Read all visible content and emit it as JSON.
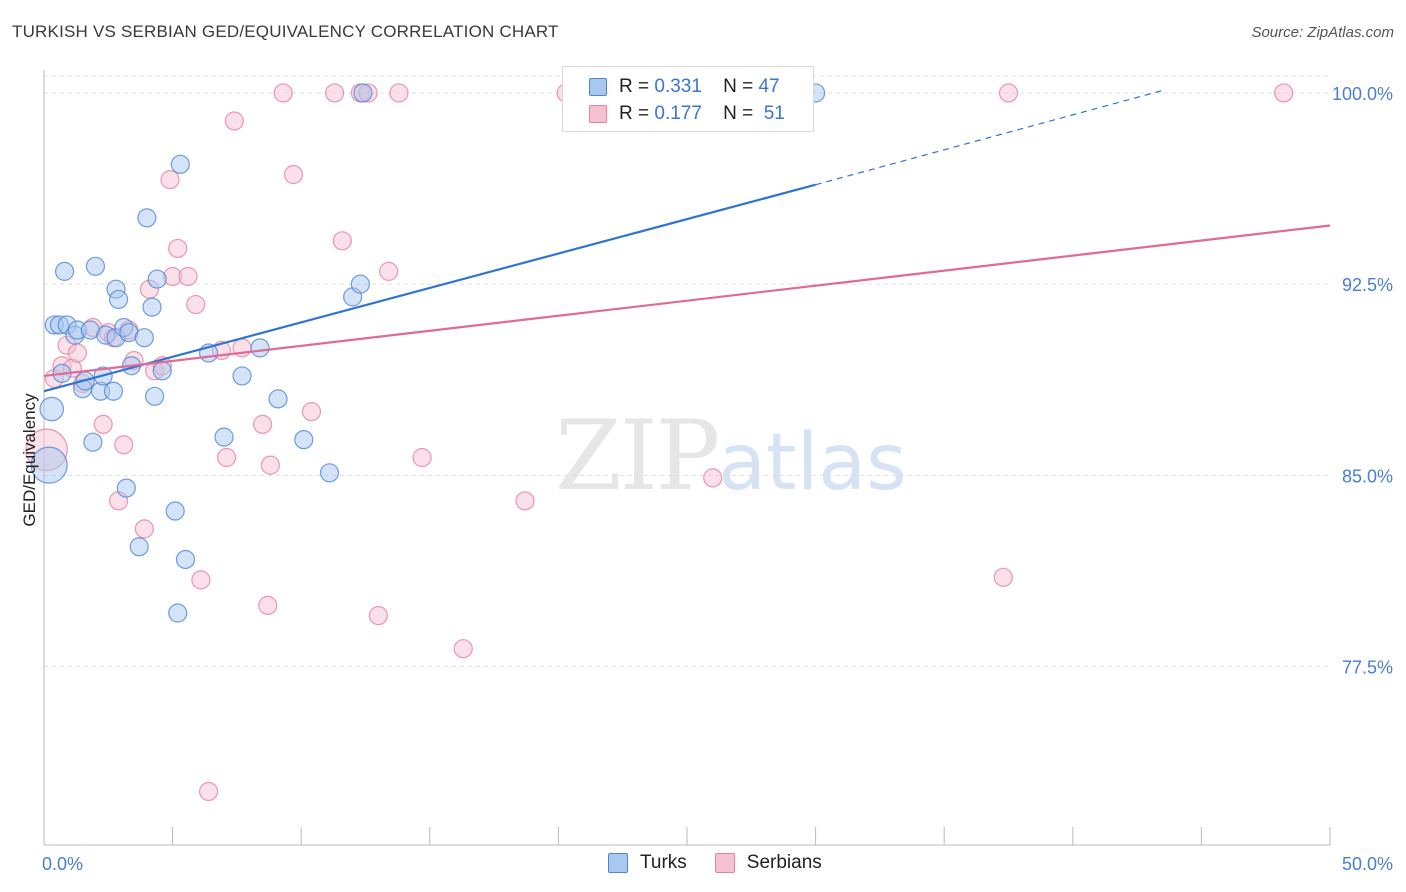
{
  "title": "TURKISH VS SERBIAN GED/EQUIVALENCY CORRELATION CHART",
  "source": "Source: ZipAtlas.com",
  "watermark": {
    "zip": "ZIP",
    "atlas": "atlas"
  },
  "colors": {
    "turks_fill": "#a9c8f0",
    "turks_stroke": "#4e86d6",
    "turks_line": "#2f74d0",
    "serbians_fill": "#f6c1d1",
    "serbians_stroke": "#e77fa0",
    "serbians_line": "#e06a95",
    "tick_label": "#4a7ecf",
    "grid": "#dddddd"
  },
  "legend": {
    "rows": [
      {
        "r_label": "R =",
        "r_value": "0.331",
        "n_label": "N =",
        "n_value": "47"
      },
      {
        "r_label": "R =",
        "r_value": "0.177",
        "n_label": "N =",
        "n_value": "51"
      }
    ]
  },
  "bottom_legend": {
    "turks": "Turks",
    "serbians": "Serbians"
  },
  "chart_data": {
    "type": "scatter",
    "title": "TURKISH VS SERBIAN GED/EQUIVALENCY CORRELATION CHART",
    "xlabel": "",
    "ylabel": "GED/Equivalency",
    "xlim": [
      0,
      50
    ],
    "ylim": [
      70.5,
      100.9
    ],
    "x_tick_labels": [
      "0.0%",
      "50.0%"
    ],
    "y_ticks": [
      77.5,
      85.0,
      92.5,
      100.0
    ],
    "y_tick_labels": [
      "77.5%",
      "85.0%",
      "92.5%",
      "100.0%"
    ],
    "series": [
      {
        "name": "Turks",
        "r": 0.331,
        "n": 47,
        "trend": {
          "x0": 0,
          "y0": 88.3,
          "x1": 30.0,
          "y1": 96.4,
          "dash_to_x": 43.5,
          "dash_to_y": 100.1
        },
        "points": [
          [
            0.2,
            85.4,
            2.0
          ],
          [
            0.3,
            87.6,
            1.3
          ],
          [
            0.4,
            90.9,
            1.0
          ],
          [
            0.6,
            90.9,
            1.0
          ],
          [
            0.7,
            89.0,
            1.0
          ],
          [
            0.8,
            93.0,
            1.0
          ],
          [
            0.9,
            90.9,
            1.0
          ],
          [
            1.2,
            90.5,
            1.0
          ],
          [
            1.3,
            90.7,
            1.0
          ],
          [
            1.5,
            88.4,
            1.0
          ],
          [
            1.6,
            88.7,
            1.0
          ],
          [
            1.8,
            90.7,
            1.0
          ],
          [
            1.9,
            86.3,
            1.0
          ],
          [
            2.0,
            93.2,
            1.0
          ],
          [
            2.2,
            88.3,
            1.0
          ],
          [
            2.4,
            90.5,
            1.0
          ],
          [
            2.3,
            88.9,
            1.0
          ],
          [
            2.7,
            88.3,
            1.0
          ],
          [
            2.8,
            90.4,
            1.0
          ],
          [
            2.8,
            92.3,
            1.0
          ],
          [
            2.9,
            91.9,
            1.0
          ],
          [
            3.1,
            90.8,
            1.0
          ],
          [
            3.2,
            84.5,
            1.0
          ],
          [
            3.3,
            90.6,
            1.0
          ],
          [
            3.4,
            89.3,
            1.0
          ],
          [
            3.7,
            82.2,
            1.0
          ],
          [
            3.9,
            90.4,
            1.0
          ],
          [
            4.0,
            95.1,
            1.0
          ],
          [
            4.2,
            91.6,
            1.0
          ],
          [
            4.3,
            88.1,
            1.0
          ],
          [
            4.4,
            92.7,
            1.0
          ],
          [
            4.6,
            89.1,
            1.0
          ],
          [
            5.1,
            83.6,
            1.0
          ],
          [
            5.2,
            79.6,
            1.0
          ],
          [
            5.3,
            97.2,
            1.0
          ],
          [
            5.5,
            81.7,
            1.0
          ],
          [
            6.4,
            89.8,
            1.0
          ],
          [
            7.0,
            86.5,
            1.0
          ],
          [
            7.7,
            88.9,
            1.0
          ],
          [
            8.4,
            90.0,
            1.0
          ],
          [
            9.1,
            88.0,
            1.0
          ],
          [
            10.1,
            86.4,
            1.0
          ],
          [
            11.1,
            85.1,
            1.0
          ],
          [
            12.0,
            92.0,
            1.0
          ],
          [
            12.3,
            92.5,
            1.0
          ],
          [
            12.4,
            100.0,
            1.0
          ],
          [
            30.0,
            100.0,
            1.0
          ]
        ]
      },
      {
        "name": "Serbians",
        "r": 0.177,
        "n": 51,
        "trend": {
          "x0": 0,
          "y0": 88.9,
          "x1": 50.0,
          "y1": 94.8
        },
        "points": [
          [
            0.1,
            86.0,
            2.3
          ],
          [
            0.4,
            88.8,
            1.0
          ],
          [
            0.7,
            89.3,
            1.0
          ],
          [
            0.9,
            90.1,
            1.0
          ],
          [
            1.1,
            89.2,
            1.0
          ],
          [
            1.3,
            89.8,
            1.0
          ],
          [
            1.5,
            88.6,
            1.0
          ],
          [
            1.9,
            90.8,
            1.0
          ],
          [
            2.3,
            87.0,
            1.0
          ],
          [
            2.5,
            90.6,
            1.0
          ],
          [
            2.7,
            90.4,
            1.0
          ],
          [
            2.9,
            84.0,
            1.0
          ],
          [
            3.1,
            86.2,
            1.0
          ],
          [
            3.3,
            90.7,
            1.0
          ],
          [
            3.5,
            89.5,
            1.0
          ],
          [
            3.9,
            82.9,
            1.0
          ],
          [
            4.1,
            92.3,
            1.0
          ],
          [
            4.3,
            89.1,
            1.0
          ],
          [
            4.6,
            89.3,
            1.0
          ],
          [
            4.9,
            96.6,
            1.0
          ],
          [
            5.0,
            92.8,
            1.0
          ],
          [
            5.2,
            93.9,
            1.0
          ],
          [
            5.6,
            92.8,
            1.0
          ],
          [
            5.9,
            91.7,
            1.0
          ],
          [
            6.1,
            80.9,
            1.0
          ],
          [
            6.4,
            72.6,
            1.0
          ],
          [
            6.9,
            89.9,
            1.0
          ],
          [
            7.1,
            85.7,
            1.0
          ],
          [
            7.4,
            98.9,
            1.0
          ],
          [
            7.7,
            90.0,
            1.0
          ],
          [
            8.5,
            87.0,
            1.0
          ],
          [
            8.7,
            79.9,
            1.0
          ],
          [
            8.8,
            85.4,
            1.0
          ],
          [
            9.3,
            100.0,
            1.0
          ],
          [
            9.7,
            96.8,
            1.0
          ],
          [
            10.4,
            87.5,
            1.0
          ],
          [
            11.3,
            100.0,
            1.0
          ],
          [
            11.6,
            94.2,
            1.0
          ],
          [
            12.3,
            100.0,
            1.0
          ],
          [
            12.6,
            100.0,
            1.0
          ],
          [
            13.0,
            79.5,
            1.0
          ],
          [
            13.4,
            93.0,
            1.0
          ],
          [
            13.8,
            100.0,
            1.0
          ],
          [
            14.7,
            85.7,
            1.0
          ],
          [
            16.3,
            78.2,
            1.0
          ],
          [
            18.7,
            84.0,
            1.0
          ],
          [
            20.3,
            100.0,
            1.0
          ],
          [
            26.0,
            84.9,
            1.0
          ],
          [
            37.3,
            81.0,
            1.0
          ],
          [
            37.5,
            100.0,
            1.0
          ],
          [
            48.2,
            100.0,
            1.0
          ]
        ]
      }
    ]
  }
}
